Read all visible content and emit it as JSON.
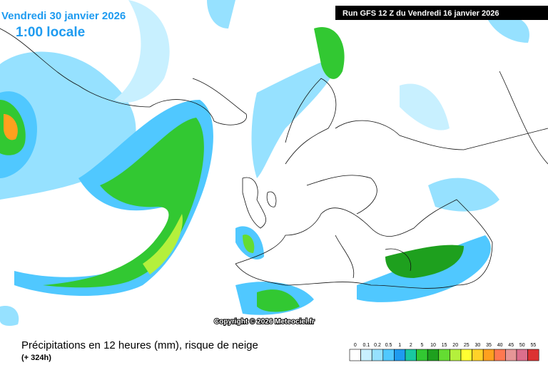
{
  "header": {
    "date": "Vendredi 30 janvier 2026",
    "time": "1:00 locale",
    "run": "Run GFS 12 Z du Vendredi 16 janvier 2026"
  },
  "copyright": "Copyright © 2026 Meteociel.fr",
  "footer": {
    "title": "Précipitations en 12 heures (mm), risque de neige",
    "lead": "(+ 324h)"
  },
  "legend": {
    "labels": [
      0,
      0.1,
      0.2,
      0.5,
      1,
      2,
      5,
      10,
      15,
      20,
      25,
      30,
      35,
      40,
      45,
      50,
      55
    ],
    "colors": [
      "#ffffff",
      "#c8f0ff",
      "#96e1ff",
      "#50c8ff",
      "#1e9bf0",
      "#19c8a0",
      "#32c832",
      "#1ea01e",
      "#64dc32",
      "#b4f03c",
      "#ffff32",
      "#ffd228",
      "#ffa01e",
      "#ff7850",
      "#e69696",
      "#dc6e8c",
      "#dc3232"
    ]
  }
}
